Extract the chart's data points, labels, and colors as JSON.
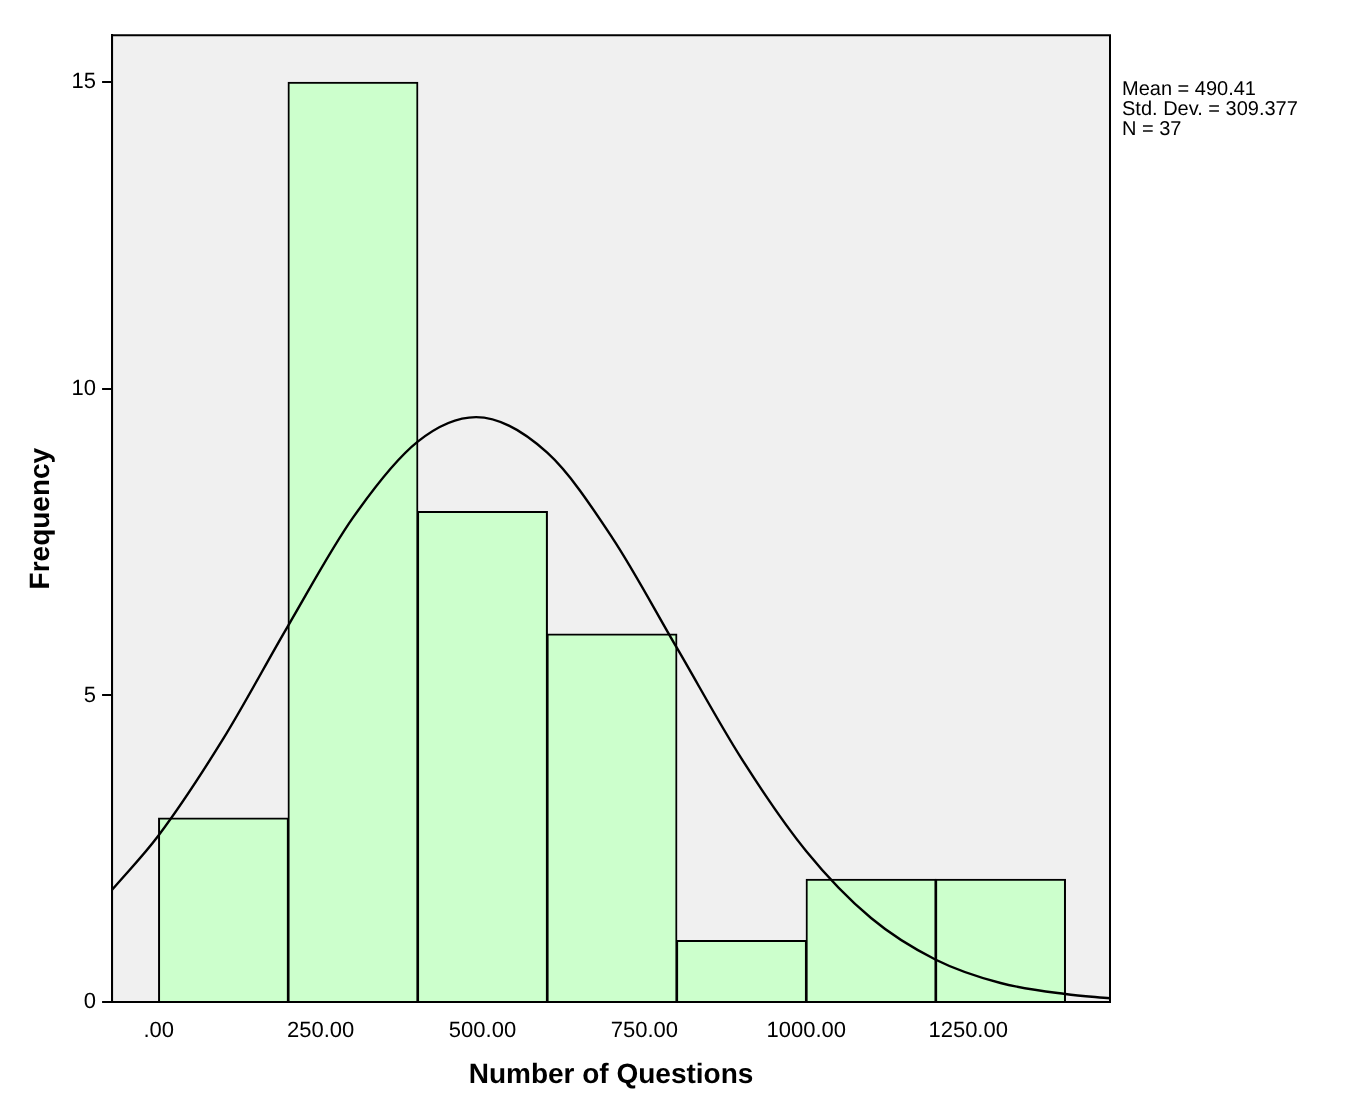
{
  "chart_data": {
    "type": "histogram",
    "xlabel": "Number of Questions",
    "ylabel": "Frequency",
    "bins": [
      0,
      200,
      400,
      600,
      800,
      1000,
      1200,
      1400
    ],
    "values": [
      3,
      15,
      8,
      6,
      1,
      2,
      2
    ],
    "color": "#ccffcc",
    "series": [
      {
        "type": "line",
        "color": "#000000",
        "x": [
          -72,
          0,
          100,
          200,
          300,
          400,
          490,
          600,
          700,
          800,
          900,
          1000,
          1100,
          1200,
          1300,
          1400,
          1469
        ],
        "values": [
          1.83,
          2.72,
          4.3,
          6.14,
          7.9,
          9.14,
          9.54,
          8.96,
          7.58,
          5.78,
          3.97,
          2.46,
          1.37,
          0.69,
          0.31,
          0.13,
          0.06
        ]
      }
    ],
    "xlim": [
      -72,
      1469
    ],
    "xticks": [
      {
        "value": 0,
        "label": ".00"
      },
      {
        "value": 250,
        "label": "250.00"
      },
      {
        "value": 500,
        "label": "500.00"
      },
      {
        "value": 750,
        "label": "750.00"
      },
      {
        "value": 1000,
        "label": "1000.00"
      },
      {
        "value": 1250,
        "label": "1250.00"
      }
    ],
    "ylim": [
      0,
      15.77
    ],
    "yticks": [
      0,
      5,
      10,
      15
    ],
    "annotations": [
      "Mean = 490.41",
      "Std. Dev. = 309.377",
      "N = 37"
    ],
    "grid": false,
    "legend": false,
    "marker": "none"
  }
}
